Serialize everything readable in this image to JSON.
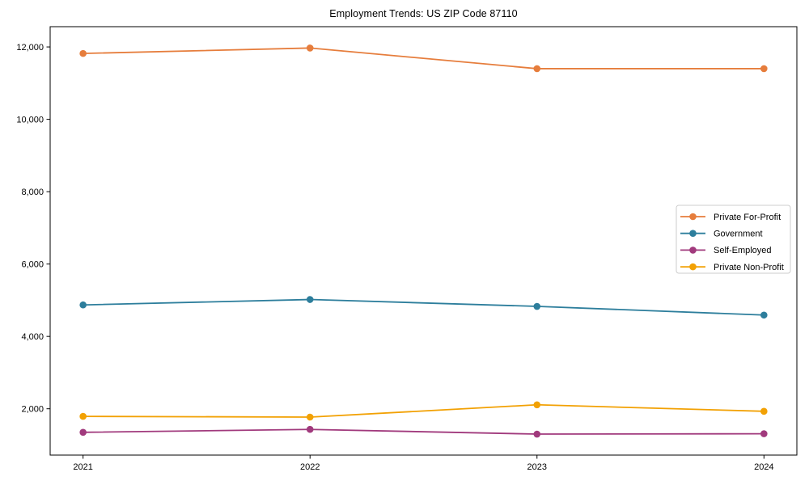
{
  "chart_data": {
    "type": "line",
    "title": "Employment Trends: US ZIP Code 87110",
    "x": [
      2021,
      2022,
      2023,
      2024
    ],
    "x_tick_labels": [
      "2021",
      "2022",
      "2023",
      "2024"
    ],
    "y_ticks": [
      2000,
      4000,
      6000,
      8000,
      10000,
      12000
    ],
    "y_tick_labels": [
      "2,000",
      "4,000",
      "6,000",
      "8,000",
      "10,000",
      "12,000"
    ],
    "xlim": [
      2020.855,
      2024.145
    ],
    "ylim": [
      720,
      12560
    ],
    "grid": false,
    "legend_position": "center-right",
    "marker": "circle",
    "background_color": "#ffffff",
    "axis_color": "#000000",
    "legend_border_color": "#cccccc",
    "series": [
      {
        "name": "Private For-Profit",
        "color": "#E67D3C",
        "values": [
          11820,
          11970,
          11400,
          11400
        ]
      },
      {
        "name": "Government",
        "color": "#2D7E9C",
        "values": [
          4870,
          5020,
          4830,
          4590
        ]
      },
      {
        "name": "Self-Employed",
        "color": "#A13A7D",
        "values": [
          1350,
          1430,
          1300,
          1310
        ]
      },
      {
        "name": "Private Non-Profit",
        "color": "#F2A104",
        "values": [
          1790,
          1770,
          2110,
          1930
        ]
      }
    ]
  }
}
